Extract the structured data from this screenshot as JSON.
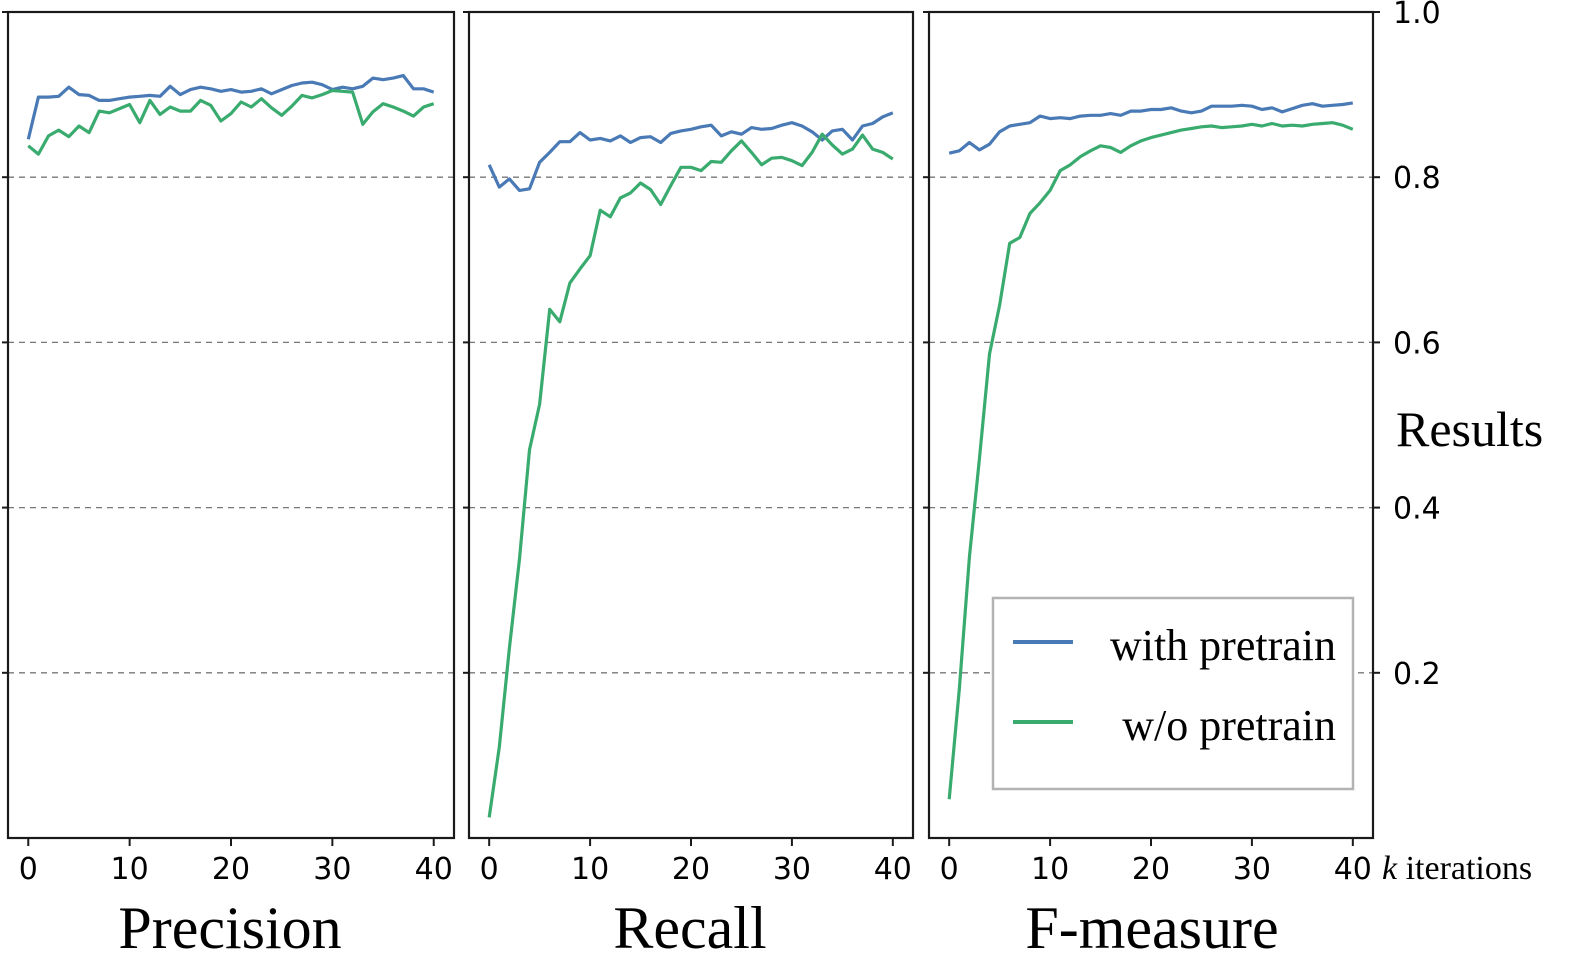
{
  "chart_data": {
    "type": "line",
    "x_unit_label": "k iterations",
    "x_unit_italic": "k",
    "x_unit_rest": " iterations",
    "ylabel": "Results",
    "ylim": [
      0.0,
      1.0
    ],
    "yticks": [
      "0.2",
      "0.4",
      "0.6",
      "0.8",
      "1.0"
    ],
    "ytick_values": [
      0.2,
      0.4,
      0.6,
      0.8,
      1.0
    ],
    "xlim": [
      -2,
      42
    ],
    "xticks": [
      "0",
      "10",
      "20",
      "30",
      "40"
    ],
    "xtick_values": [
      0,
      10,
      20,
      30,
      40
    ],
    "grid": "horizontal-dashed",
    "legend": {
      "location": "lower-right of third panel",
      "entries": [
        {
          "label": "with pretrain",
          "color": "#4a7ab5"
        },
        {
          "label": "w/o pretrain",
          "color": "#3aab6e"
        }
      ]
    },
    "series_colors": {
      "with_pretrain": "#4a7ab5",
      "wo_pretrain": "#3aab6e"
    },
    "panels": [
      {
        "title": "Precision",
        "series": [
          {
            "name": "with pretrain",
            "color": "#4a7ab5",
            "values": [
              0.846,
              0.897,
              0.897,
              0.898,
              0.909,
              0.9,
              0.899,
              0.893,
              0.893,
              0.895,
              0.897,
              0.898,
              0.899,
              0.898,
              0.91,
              0.9,
              0.906,
              0.909,
              0.907,
              0.904,
              0.906,
              0.903,
              0.904,
              0.907,
              0.901,
              0.906,
              0.911,
              0.914,
              0.915,
              0.912,
              0.906,
              0.909,
              0.907,
              0.91,
              0.92,
              0.918,
              0.92,
              0.923,
              0.907,
              0.907,
              0.903
            ]
          },
          {
            "name": "w/o pretrain",
            "color": "#3aab6e",
            "values": [
              0.838,
              0.828,
              0.85,
              0.857,
              0.849,
              0.862,
              0.854,
              0.88,
              0.878,
              0.883,
              0.888,
              0.866,
              0.893,
              0.876,
              0.885,
              0.88,
              0.88,
              0.893,
              0.887,
              0.868,
              0.877,
              0.891,
              0.885,
              0.895,
              0.884,
              0.875,
              0.886,
              0.899,
              0.896,
              0.9,
              0.905,
              0.904,
              0.903,
              0.864,
              0.879,
              0.889,
              0.885,
              0.88,
              0.874,
              0.885,
              0.889
            ]
          }
        ]
      },
      {
        "title": "Recall",
        "series": [
          {
            "name": "with pretrain",
            "color": "#4a7ab5",
            "values": [
              0.815,
              0.788,
              0.798,
              0.784,
              0.786,
              0.818,
              0.83,
              0.843,
              0.843,
              0.854,
              0.845,
              0.847,
              0.844,
              0.85,
              0.842,
              0.848,
              0.849,
              0.842,
              0.853,
              0.856,
              0.858,
              0.861,
              0.863,
              0.85,
              0.855,
              0.852,
              0.86,
              0.858,
              0.859,
              0.863,
              0.866,
              0.862,
              0.855,
              0.845,
              0.856,
              0.858,
              0.845,
              0.862,
              0.865,
              0.873,
              0.878
            ]
          },
          {
            "name": "w/o pretrain",
            "color": "#3aab6e",
            "values": [
              0.025,
              0.11,
              0.23,
              0.338,
              0.47,
              0.525,
              0.64,
              0.625,
              0.672,
              0.689,
              0.705,
              0.76,
              0.752,
              0.775,
              0.781,
              0.793,
              0.785,
              0.767,
              0.79,
              0.812,
              0.812,
              0.808,
              0.819,
              0.818,
              0.832,
              0.844,
              0.83,
              0.815,
              0.823,
              0.824,
              0.82,
              0.814,
              0.83,
              0.852,
              0.839,
              0.828,
              0.834,
              0.851,
              0.834,
              0.83,
              0.822
            ]
          }
        ]
      },
      {
        "title": "F-measure",
        "series": [
          {
            "name": "with pretrain",
            "color": "#4a7ab5",
            "values": [
              0.829,
              0.832,
              0.842,
              0.833,
              0.84,
              0.855,
              0.862,
              0.864,
              0.866,
              0.874,
              0.871,
              0.872,
              0.871,
              0.874,
              0.875,
              0.875,
              0.877,
              0.875,
              0.88,
              0.88,
              0.882,
              0.882,
              0.884,
              0.88,
              0.878,
              0.88,
              0.886,
              0.886,
              0.886,
              0.887,
              0.886,
              0.882,
              0.884,
              0.879,
              0.883,
              0.887,
              0.889,
              0.886,
              0.887,
              0.888,
              0.89
            ]
          },
          {
            "name": "w/o pretrain",
            "color": "#3aab6e",
            "values": [
              0.047,
              0.18,
              0.34,
              0.46,
              0.586,
              0.645,
              0.72,
              0.727,
              0.756,
              0.769,
              0.784,
              0.808,
              0.815,
              0.825,
              0.832,
              0.838,
              0.836,
              0.83,
              0.838,
              0.844,
              0.848,
              0.851,
              0.854,
              0.857,
              0.859,
              0.861,
              0.862,
              0.86,
              0.861,
              0.862,
              0.864,
              0.862,
              0.865,
              0.862,
              0.863,
              0.862,
              0.864,
              0.865,
              0.866,
              0.863,
              0.858
            ]
          }
        ]
      }
    ]
  }
}
